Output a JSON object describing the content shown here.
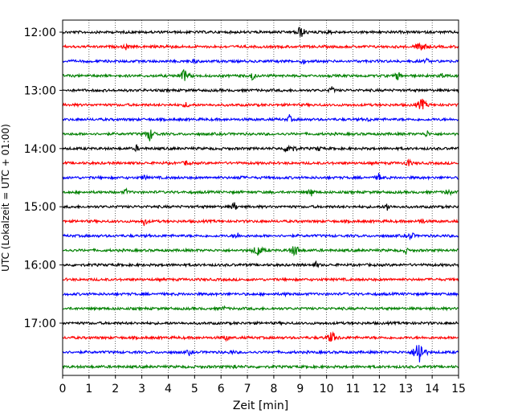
{
  "chart_data": {
    "type": "line",
    "title": "",
    "xlabel": "Zeit  [min]",
    "ylabel": "UTC (Lokalzeit = UTC + 01:00)",
    "xlim": [
      0,
      15
    ],
    "x_ticks": [
      "0",
      "1",
      "2",
      "3",
      "4",
      "5",
      "6",
      "7",
      "8",
      "9",
      "10",
      "11",
      "12",
      "13",
      "14",
      "15"
    ],
    "y_tick_labels": [
      "12:00",
      "13:00",
      "14:00",
      "15:00",
      "16:00",
      "17:00"
    ],
    "grid": "vertical dotted",
    "colors": [
      "#000000",
      "#ff0000",
      "#0000ff",
      "#008000"
    ],
    "trace_interval_min": 15,
    "traces": [
      {
        "time": "12:00",
        "color": "#000000",
        "events": [
          {
            "t": 9.0,
            "amp": 1.0
          },
          {
            "t": 10.1,
            "amp": 0.4
          }
        ]
      },
      {
        "time": "12:15",
        "color": "#ff0000",
        "events": [
          {
            "t": 2.4,
            "amp": 0.4
          },
          {
            "t": 4.0,
            "amp": 0.5
          },
          {
            "t": 13.6,
            "amp": 1.0
          }
        ]
      },
      {
        "time": "12:30",
        "color": "#0000ff",
        "events": [
          {
            "t": 5.0,
            "amp": 0.3
          },
          {
            "t": 9.1,
            "amp": 0.4
          },
          {
            "t": 13.8,
            "amp": 0.3
          }
        ]
      },
      {
        "time": "12:45",
        "color": "#008000",
        "events": [
          {
            "t": 4.6,
            "amp": 1.0
          },
          {
            "t": 7.2,
            "amp": 0.8
          },
          {
            "t": 12.7,
            "amp": 0.9
          },
          {
            "t": 14.4,
            "amp": 0.5
          }
        ]
      },
      {
        "time": "13:00",
        "color": "#000000",
        "events": [
          {
            "t": 10.2,
            "amp": 0.6
          }
        ]
      },
      {
        "time": "13:15",
        "color": "#ff0000",
        "events": [
          {
            "t": 4.7,
            "amp": 0.5
          },
          {
            "t": 13.6,
            "amp": 1.0
          }
        ]
      },
      {
        "time": "13:30",
        "color": "#0000ff",
        "events": [
          {
            "t": 8.6,
            "amp": 0.7
          },
          {
            "t": 11.6,
            "amp": 0.3
          }
        ]
      },
      {
        "time": "13:45",
        "color": "#008000",
        "events": [
          {
            "t": 3.3,
            "amp": 1.0
          },
          {
            "t": 13.8,
            "amp": 0.6
          }
        ]
      },
      {
        "time": "14:00",
        "color": "#000000",
        "events": [
          {
            "t": 2.8,
            "amp": 0.5
          },
          {
            "t": 8.6,
            "amp": 1.0
          },
          {
            "t": 9.7,
            "amp": 0.4
          }
        ]
      },
      {
        "time": "14:15",
        "color": "#ff0000",
        "events": [
          {
            "t": 4.7,
            "amp": 0.5
          },
          {
            "t": 13.1,
            "amp": 0.8
          }
        ]
      },
      {
        "time": "14:30",
        "color": "#0000ff",
        "events": [
          {
            "t": 3.1,
            "amp": 0.5
          },
          {
            "t": 6.7,
            "amp": 0.4
          },
          {
            "t": 12.0,
            "amp": 0.8
          }
        ]
      },
      {
        "time": "14:45",
        "color": "#008000",
        "events": [
          {
            "t": 2.4,
            "amp": 0.5
          },
          {
            "t": 9.4,
            "amp": 0.8
          },
          {
            "t": 14.6,
            "amp": 0.8
          }
        ]
      },
      {
        "time": "15:00",
        "color": "#000000",
        "events": [
          {
            "t": 6.5,
            "amp": 0.8
          },
          {
            "t": 12.3,
            "amp": 0.7
          }
        ]
      },
      {
        "time": "15:15",
        "color": "#ff0000",
        "events": [
          {
            "t": 3.1,
            "amp": 0.8
          },
          {
            "t": 13.6,
            "amp": 0.6
          }
        ]
      },
      {
        "time": "15:30",
        "color": "#0000ff",
        "events": [
          {
            "t": 6.6,
            "amp": 0.7
          },
          {
            "t": 13.2,
            "amp": 0.9
          }
        ]
      },
      {
        "time": "15:45",
        "color": "#008000",
        "events": [
          {
            "t": 7.4,
            "amp": 1.0
          },
          {
            "t": 8.8,
            "amp": 1.0
          },
          {
            "t": 13.0,
            "amp": 0.5
          }
        ]
      },
      {
        "time": "16:00",
        "color": "#000000",
        "events": [
          {
            "t": 9.6,
            "amp": 0.4
          }
        ]
      },
      {
        "time": "16:15",
        "color": "#ff0000",
        "events": []
      },
      {
        "time": "16:30",
        "color": "#0000ff",
        "events": [
          {
            "t": 8.5,
            "amp": 0.3
          }
        ]
      },
      {
        "time": "16:45",
        "color": "#008000",
        "events": [
          {
            "t": 6.1,
            "amp": 0.3
          }
        ]
      },
      {
        "time": "17:00",
        "color": "#000000",
        "events": []
      },
      {
        "time": "17:15",
        "color": "#ff0000",
        "events": [
          {
            "t": 6.2,
            "amp": 0.5
          },
          {
            "t": 10.2,
            "amp": 1.0
          }
        ]
      },
      {
        "time": "17:30",
        "color": "#0000ff",
        "events": [
          {
            "t": 4.8,
            "amp": 0.4
          },
          {
            "t": 6.4,
            "amp": 0.3
          },
          {
            "t": 13.5,
            "amp": 2.6
          }
        ]
      },
      {
        "time": "17:45",
        "color": "#008000",
        "events": [
          {
            "t": 6.5,
            "amp": 0.4
          }
        ]
      }
    ]
  }
}
